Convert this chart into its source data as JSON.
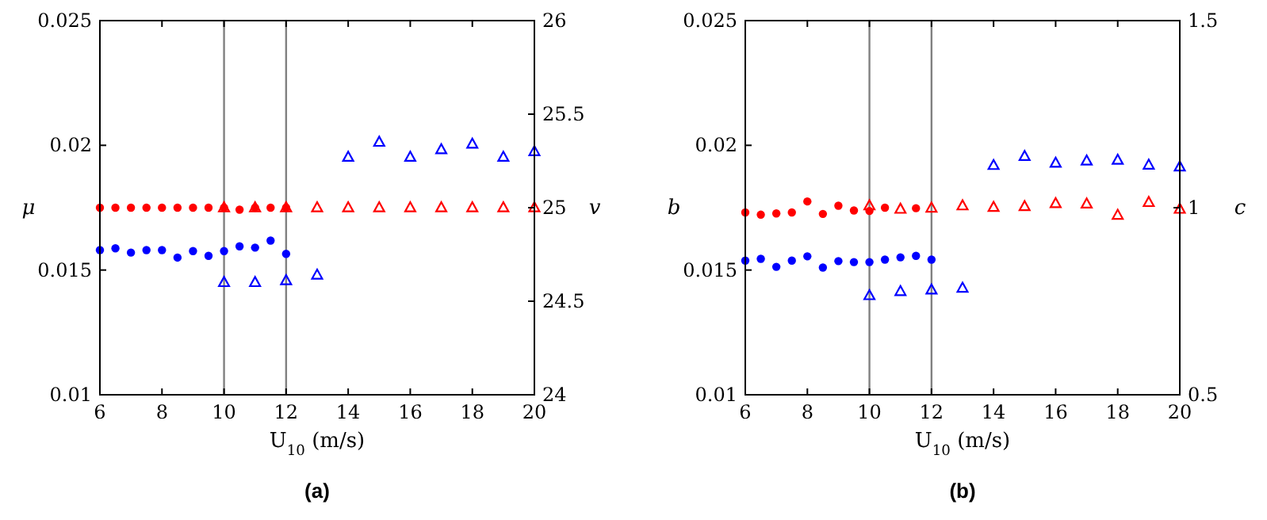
{
  "chart_data": [
    {
      "type": "scatter",
      "xlabel": "U$_{10}$ (m/s)",
      "ylabel": "μ",
      "y2label": "v",
      "xlim": [
        6,
        20
      ],
      "xticks": [
        6,
        8,
        10,
        12,
        14,
        16,
        18,
        20
      ],
      "ylim": [
        0.01,
        0.025
      ],
      "yticks": [
        0.01,
        0.015,
        0.02,
        0.025
      ],
      "y2lim": [
        24,
        26
      ],
      "y2ticks": [
        24,
        24.5,
        25,
        25.5,
        26
      ],
      "grid": false,
      "ref_lines": [
        {
          "axis": "x",
          "value": 10,
          "color": "#808080"
        },
        {
          "axis": "x",
          "value": 12,
          "color": "#808080"
        }
      ],
      "annotations": [
        "(a)"
      ],
      "series": [
        {
          "color": "#ff0000",
          "marker": "circle",
          "x": [
            6,
            6.5,
            7,
            7.5,
            8,
            8.5,
            9,
            9.5,
            10,
            10.5,
            11,
            11.5,
            12
          ],
          "values": [
            0.0175,
            0.0175,
            0.0175,
            0.0175,
            0.0175,
            0.0175,
            0.0175,
            0.0175,
            0.0175,
            0.01742,
            0.0175,
            0.0175,
            0.0175
          ]
        },
        {
          "color": "#0000ff",
          "marker": "circle",
          "x": [
            6,
            6.5,
            7,
            7.5,
            8,
            8.5,
            9,
            9.5,
            10,
            10.5,
            11,
            11.5,
            12
          ],
          "values": [
            0.0158,
            0.01587,
            0.0157,
            0.0158,
            0.0158,
            0.0155,
            0.01576,
            0.01557,
            0.01576,
            0.01595,
            0.0159,
            0.01618,
            0.01565
          ]
        },
        {
          "color": "#ff0000",
          "marker": "triangle",
          "axis": "y2",
          "x": [
            10,
            11,
            12,
            13,
            14,
            15,
            16,
            17,
            18,
            19,
            20
          ],
          "values": [
            25,
            25,
            25,
            25,
            25,
            25,
            25,
            25,
            25,
            25,
            25
          ]
        },
        {
          "color": "#0000ff",
          "marker": "triangle",
          "axis": "y2",
          "x": [
            10,
            11,
            12,
            13,
            14,
            15,
            16,
            17,
            18,
            19,
            20
          ],
          "values": [
            24.6,
            24.6,
            24.61,
            24.64,
            25.27,
            25.35,
            25.27,
            25.31,
            25.34,
            25.27,
            25.3
          ]
        }
      ]
    },
    {
      "type": "scatter",
      "xlabel": "U$_{10}$ (m/s)",
      "ylabel": "b",
      "y2label": "c",
      "xlim": [
        6,
        20
      ],
      "xticks": [
        6,
        8,
        10,
        12,
        14,
        16,
        18,
        20
      ],
      "ylim": [
        0.01,
        0.025
      ],
      "yticks": [
        0.01,
        0.015,
        0.02,
        0.025
      ],
      "y2lim": [
        0.5,
        1.5
      ],
      "y2ticks": [
        0.5,
        1,
        1.5
      ],
      "grid": false,
      "ref_lines": [
        {
          "axis": "x",
          "value": 10,
          "color": "#808080"
        },
        {
          "axis": "x",
          "value": 12,
          "color": "#808080"
        }
      ],
      "annotations": [
        "(b)"
      ],
      "series": [
        {
          "color": "#ff0000",
          "marker": "circle",
          "x": [
            6,
            6.5,
            7,
            7.5,
            8,
            8.5,
            9,
            9.5,
            10,
            10.5,
            11.5
          ],
          "values": [
            0.01731,
            0.01722,
            0.01727,
            0.01731,
            0.01775,
            0.01725,
            0.01758,
            0.01739,
            0.01737,
            0.0175,
            0.01748
          ]
        },
        {
          "color": "#0000ff",
          "marker": "circle",
          "x": [
            6,
            6.5,
            7,
            7.5,
            8,
            8.5,
            9,
            9.5,
            10,
            10.5,
            11,
            11.5,
            12
          ],
          "values": [
            0.01538,
            0.01545,
            0.01513,
            0.01538,
            0.01555,
            0.0151,
            0.01536,
            0.01532,
            0.01532,
            0.01542,
            0.01551,
            0.01557,
            0.01542
          ]
        },
        {
          "color": "#ff0000",
          "marker": "triangle",
          "axis": "y2",
          "x": [
            10,
            11,
            12,
            13,
            14,
            15,
            16,
            17,
            18,
            19,
            20
          ],
          "values": [
            1.005,
            0.996,
            0.999,
            1.005,
            1.001,
            1.003,
            1.011,
            1.01,
            0.98,
            1.014,
            0.996
          ]
        },
        {
          "color": "#0000ff",
          "marker": "triangle",
          "axis": "y2",
          "x": [
            10,
            11,
            12,
            13,
            14,
            15,
            16,
            17,
            18,
            19,
            20
          ],
          "values": [
            0.765,
            0.776,
            0.78,
            0.785,
            1.113,
            1.137,
            1.119,
            1.125,
            1.127,
            1.114,
            1.109
          ]
        }
      ]
    }
  ]
}
